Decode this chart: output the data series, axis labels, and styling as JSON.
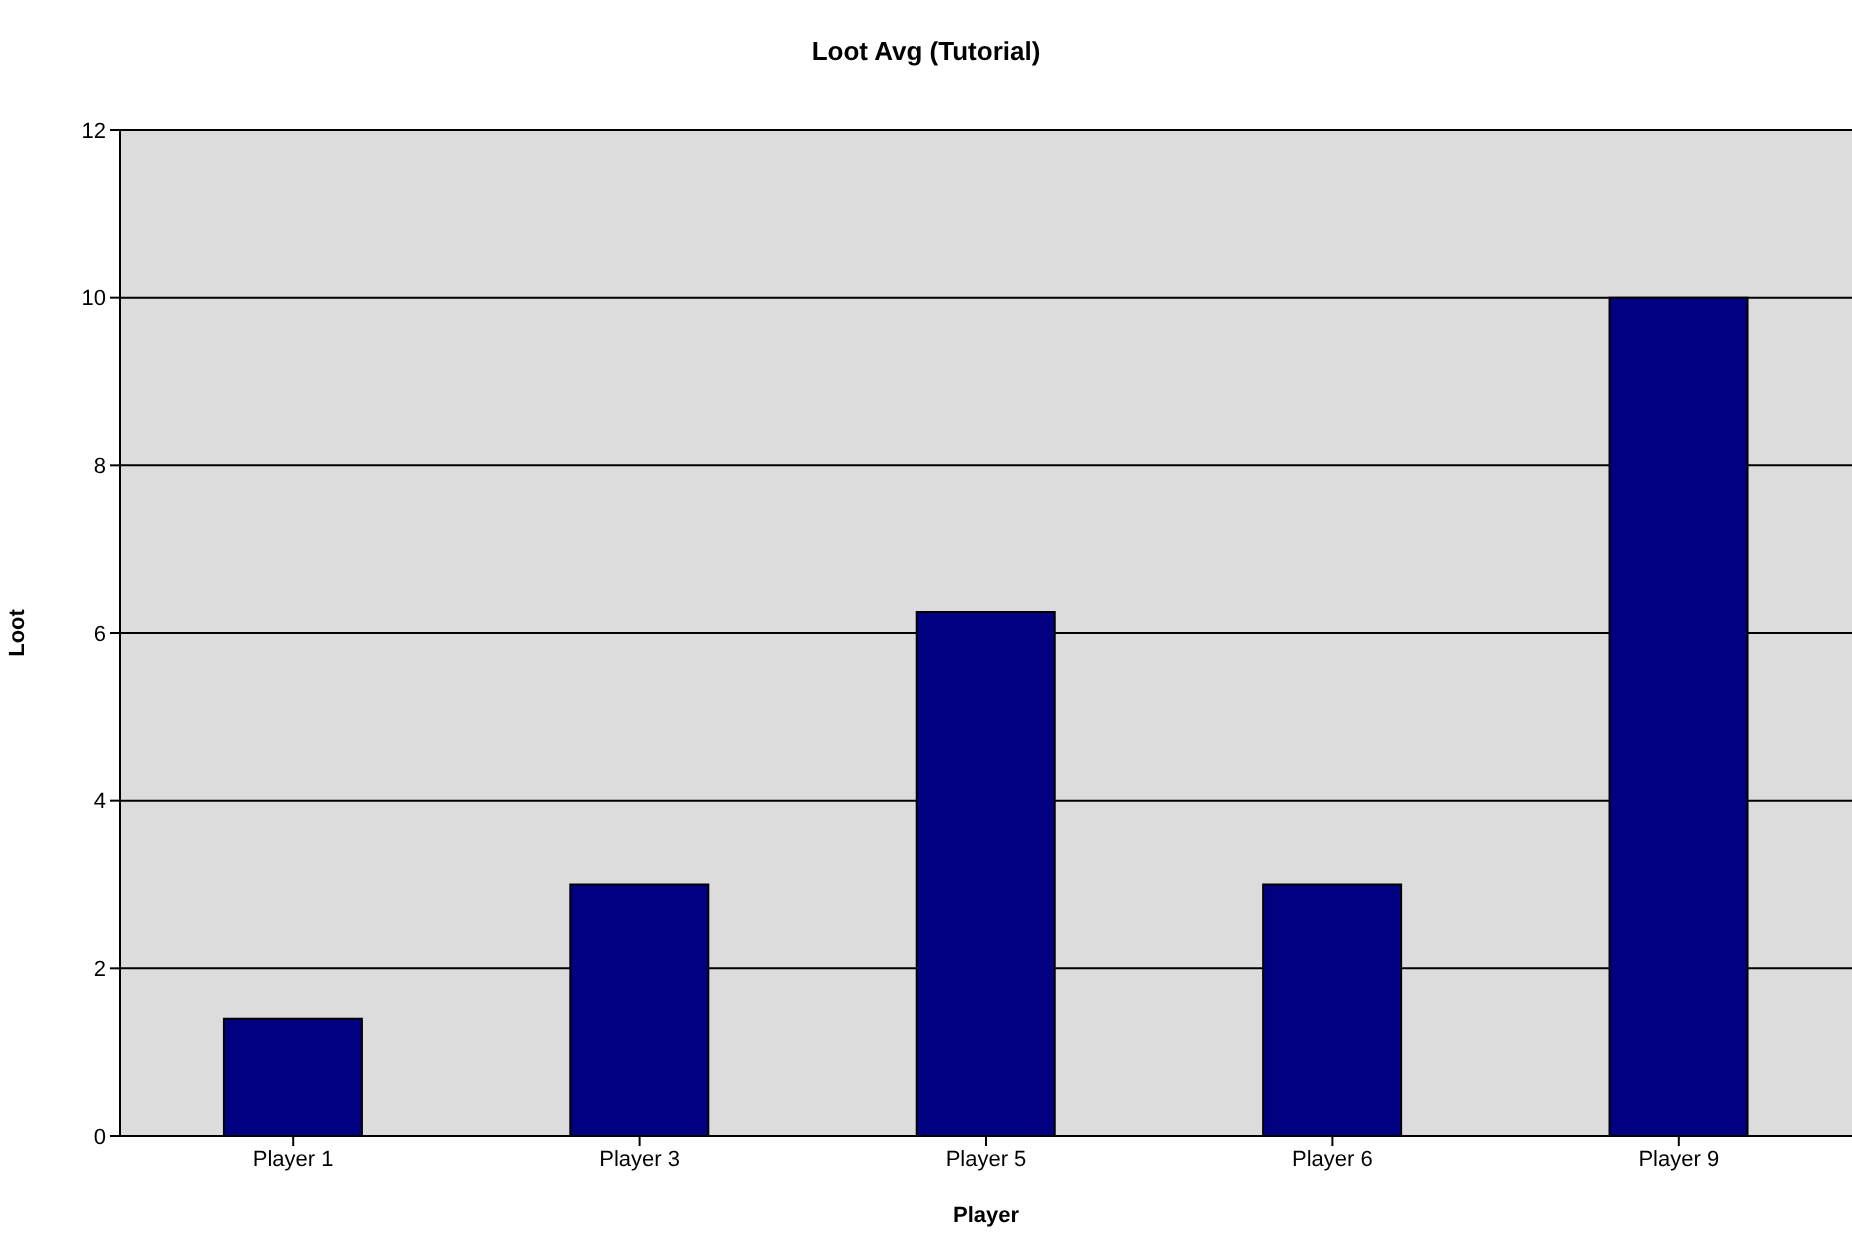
{
  "chart_data": {
    "type": "bar",
    "title": "Loot Avg (Tutorial)",
    "xlabel": "Player",
    "ylabel": "Loot",
    "categories": [
      "Player 1",
      "Player 3",
      "Player 5",
      "Player 6",
      "Player 9"
    ],
    "values": [
      1.4,
      3,
      6.25,
      3,
      10
    ],
    "color": "#000080",
    "ylim": [
      0,
      12
    ],
    "yticks": [
      0,
      2,
      4,
      6,
      8,
      10,
      12
    ],
    "grid": "y",
    "legend": false
  }
}
